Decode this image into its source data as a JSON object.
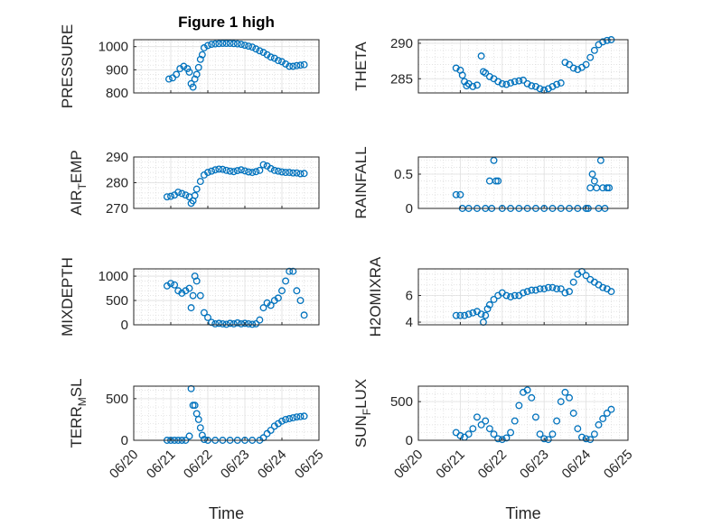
{
  "figure": {
    "title": "Figure 1 high",
    "marker_color": "#0072BD",
    "x_tick_labels": [
      "06/20",
      "06/21",
      "06/22",
      "06/23",
      "06/24",
      "06/25"
    ],
    "xlabel": "Time"
  },
  "chart_data": [
    {
      "type": "scatter",
      "title": "Figure 1 high",
      "ylabel": "PRESSURE",
      "ylim": [
        800,
        1030
      ],
      "yticks": [
        800,
        900,
        1000
      ],
      "xlim": [
        0,
        5
      ],
      "x_tick_labels": [
        "06/20",
        "06/21",
        "06/22",
        "06/23",
        "06/24",
        "06/25"
      ],
      "xlabel": "",
      "grid": true,
      "x": [
        0.95,
        1.05,
        1.15,
        1.25,
        1.35,
        1.45,
        1.5,
        1.55,
        1.6,
        1.65,
        1.7,
        1.75,
        1.8,
        1.85,
        1.9,
        2.0,
        2.1,
        2.2,
        2.3,
        2.4,
        2.5,
        2.6,
        2.7,
        2.8,
        2.9,
        3.0,
        3.1,
        3.2,
        3.3,
        3.4,
        3.5,
        3.6,
        3.7,
        3.8,
        3.9,
        4.0,
        4.1,
        4.2,
        4.3,
        4.4,
        4.5,
        4.6
      ],
      "y": [
        860,
        865,
        880,
        905,
        915,
        905,
        890,
        840,
        825,
        860,
        880,
        910,
        945,
        965,
        995,
        1005,
        1010,
        1012,
        1013,
        1014,
        1014,
        1014,
        1013,
        1012,
        1010,
        1006,
        1002,
        998,
        990,
        982,
        975,
        965,
        955,
        950,
        940,
        935,
        925,
        915,
        915,
        918,
        920,
        922
      ]
    },
    {
      "type": "scatter",
      "ylabel": "THETA",
      "ylim": [
        283,
        290.5
      ],
      "yticks": [
        285,
        290
      ],
      "xlim": [
        0,
        5
      ],
      "x_tick_labels": [
        "06/20",
        "06/21",
        "06/22",
        "06/23",
        "06/24",
        "06/25"
      ],
      "grid": true,
      "x": [
        0.9,
        1.0,
        1.05,
        1.1,
        1.15,
        1.2,
        1.3,
        1.4,
        1.5,
        1.55,
        1.6,
        1.7,
        1.8,
        1.9,
        2.0,
        2.1,
        2.2,
        2.3,
        2.4,
        2.5,
        2.6,
        2.7,
        2.8,
        2.9,
        3.0,
        3.1,
        3.2,
        3.3,
        3.4,
        3.5,
        3.6,
        3.7,
        3.8,
        3.9,
        4.0,
        4.1,
        4.2,
        4.3,
        4.4,
        4.5,
        4.6
      ],
      "y": [
        286.5,
        286.2,
        285.5,
        284.6,
        284.0,
        284.3,
        283.9,
        284.1,
        288.2,
        286.0,
        285.8,
        285.3,
        285.0,
        284.6,
        284.3,
        284.2,
        284.4,
        284.6,
        284.7,
        284.8,
        284.3,
        284.0,
        283.9,
        283.6,
        283.4,
        283.6,
        283.9,
        284.2,
        284.4,
        287.3,
        287.0,
        286.5,
        286.3,
        286.6,
        287.0,
        288.0,
        289.0,
        289.8,
        290.2,
        290.4,
        290.5
      ]
    },
    {
      "type": "scatter",
      "ylabel": "AIR_TEMP",
      "ylim": [
        270,
        290
      ],
      "yticks": [
        270,
        280,
        290
      ],
      "xlim": [
        0,
        5
      ],
      "x_tick_labels": [
        "06/20",
        "06/21",
        "06/22",
        "06/23",
        "06/24",
        "06/25"
      ],
      "grid": true,
      "x": [
        0.9,
        1.0,
        1.1,
        1.2,
        1.3,
        1.4,
        1.5,
        1.55,
        1.6,
        1.65,
        1.7,
        1.8,
        1.9,
        2.0,
        2.1,
        2.2,
        2.3,
        2.4,
        2.5,
        2.6,
        2.7,
        2.8,
        2.9,
        3.0,
        3.1,
        3.2,
        3.3,
        3.4,
        3.5,
        3.6,
        3.7,
        3.8,
        3.9,
        4.0,
        4.1,
        4.2,
        4.3,
        4.4,
        4.5,
        4.6
      ],
      "y": [
        274.5,
        274.7,
        275.2,
        276.3,
        275.8,
        275.2,
        274.5,
        272.0,
        273.0,
        275.0,
        277.5,
        280.5,
        283.0,
        284.0,
        284.5,
        285.0,
        285.3,
        285.2,
        284.8,
        284.5,
        284.3,
        284.7,
        285.0,
        284.6,
        284.2,
        284.0,
        284.3,
        284.8,
        287.0,
        286.5,
        285.5,
        284.8,
        284.5,
        284.2,
        284.0,
        284.0,
        283.8,
        283.8,
        283.5,
        283.6
      ]
    },
    {
      "type": "scatter",
      "ylabel": "RAINFALL",
      "ylim": [
        0,
        0.75
      ],
      "yticks": [
        0,
        0.5
      ],
      "xlim": [
        0,
        5
      ],
      "x_tick_labels": [
        "06/20",
        "06/21",
        "06/22",
        "06/23",
        "06/24",
        "06/25"
      ],
      "grid": true,
      "x": [
        0.9,
        1.0,
        1.05,
        1.2,
        1.4,
        1.6,
        1.7,
        1.75,
        1.8,
        1.85,
        1.9,
        2.0,
        2.2,
        2.4,
        2.6,
        2.8,
        3.0,
        3.2,
        3.4,
        3.6,
        3.8,
        4.0,
        4.05,
        4.1,
        4.15,
        4.2,
        4.25,
        4.3,
        4.35,
        4.4,
        4.45,
        4.5,
        4.55
      ],
      "y": [
        0.2,
        0.2,
        0.0,
        0.0,
        0.0,
        0.0,
        0.4,
        0.0,
        0.7,
        0.4,
        0.4,
        0.0,
        0.0,
        0.0,
        0.0,
        0.0,
        0.0,
        0.0,
        0.0,
        0.0,
        0.0,
        0.0,
        0.0,
        0.3,
        0.5,
        0.4,
        0.3,
        0.0,
        0.7,
        0.3,
        0.0,
        0.3,
        0.3
      ]
    },
    {
      "type": "scatter",
      "ylabel": "MIXDEPTH",
      "ylim": [
        0,
        1150
      ],
      "yticks": [
        0,
        500,
        1000
      ],
      "xlim": [
        0,
        5
      ],
      "x_tick_labels": [
        "06/20",
        "06/21",
        "06/22",
        "06/23",
        "06/24",
        "06/25"
      ],
      "grid": true,
      "x": [
        0.9,
        1.0,
        1.1,
        1.2,
        1.3,
        1.4,
        1.5,
        1.55,
        1.6,
        1.65,
        1.7,
        1.8,
        1.9,
        2.0,
        2.1,
        2.2,
        2.3,
        2.4,
        2.5,
        2.6,
        2.7,
        2.8,
        2.9,
        3.0,
        3.1,
        3.2,
        3.3,
        3.4,
        3.5,
        3.6,
        3.7,
        3.8,
        3.9,
        4.0,
        4.1,
        4.2,
        4.3,
        4.4,
        4.5,
        4.6
      ],
      "y": [
        800,
        850,
        820,
        700,
        650,
        700,
        750,
        350,
        600,
        1000,
        900,
        600,
        250,
        150,
        50,
        20,
        30,
        20,
        10,
        30,
        20,
        40,
        20,
        30,
        20,
        10,
        20,
        100,
        350,
        450,
        400,
        500,
        550,
        700,
        900,
        1100,
        1100,
        700,
        500,
        200
      ]
    },
    {
      "type": "scatter",
      "ylabel": "H2OMIXRA",
      "ylim": [
        3.8,
        8
      ],
      "yticks": [
        4,
        6
      ],
      "xlim": [
        0,
        5
      ],
      "x_tick_labels": [
        "06/20",
        "06/21",
        "06/22",
        "06/23",
        "06/24",
        "06/25"
      ],
      "grid": true,
      "x": [
        0.9,
        1.0,
        1.1,
        1.2,
        1.3,
        1.4,
        1.5,
        1.55,
        1.6,
        1.65,
        1.7,
        1.8,
        1.9,
        2.0,
        2.1,
        2.2,
        2.3,
        2.4,
        2.5,
        2.6,
        2.7,
        2.8,
        2.9,
        3.0,
        3.1,
        3.2,
        3.3,
        3.4,
        3.5,
        3.6,
        3.7,
        3.8,
        3.9,
        4.0,
        4.1,
        4.2,
        4.3,
        4.4,
        4.5,
        4.6
      ],
      "y": [
        4.5,
        4.5,
        4.5,
        4.6,
        4.7,
        4.8,
        4.6,
        4.0,
        4.5,
        5.0,
        5.3,
        5.7,
        6.0,
        6.2,
        6.0,
        5.9,
        6.0,
        6.0,
        6.2,
        6.3,
        6.4,
        6.4,
        6.5,
        6.5,
        6.6,
        6.6,
        6.5,
        6.5,
        6.2,
        6.3,
        7.0,
        7.6,
        7.8,
        7.5,
        7.2,
        7.0,
        6.8,
        6.6,
        6.5,
        6.3
      ]
    },
    {
      "type": "scatter",
      "ylabel": "TERR_MSL",
      "ylim": [
        0,
        650
      ],
      "yticks": [
        0,
        500
      ],
      "xlim": [
        0,
        5
      ],
      "x_tick_labels": [
        "06/20",
        "06/21",
        "06/22",
        "06/23",
        "06/24",
        "06/25"
      ],
      "xlabel": "Time",
      "grid": true,
      "x": [
        0.9,
        1.0,
        1.1,
        1.2,
        1.3,
        1.4,
        1.5,
        1.55,
        1.6,
        1.65,
        1.7,
        1.75,
        1.8,
        1.85,
        1.9,
        2.0,
        2.2,
        2.4,
        2.6,
        2.8,
        3.0,
        3.2,
        3.4,
        3.5,
        3.6,
        3.7,
        3.8,
        3.9,
        4.0,
        4.1,
        4.2,
        4.3,
        4.4,
        4.5,
        4.6
      ],
      "y": [
        0,
        0,
        0,
        0,
        0,
        0,
        50,
        620,
        420,
        420,
        320,
        250,
        150,
        60,
        10,
        0,
        0,
        0,
        0,
        0,
        0,
        0,
        0,
        30,
        80,
        120,
        170,
        200,
        230,
        250,
        260,
        270,
        280,
        285,
        290
      ]
    },
    {
      "type": "scatter",
      "ylabel": "SUN_FLUX",
      "ylim": [
        0,
        700
      ],
      "yticks": [
        0,
        500
      ],
      "xlim": [
        0,
        5
      ],
      "x_tick_labels": [
        "06/20",
        "06/21",
        "06/22",
        "06/23",
        "06/24",
        "06/25"
      ],
      "xlabel": "Time",
      "grid": true,
      "x": [
        0.9,
        1.0,
        1.1,
        1.2,
        1.3,
        1.4,
        1.5,
        1.6,
        1.7,
        1.8,
        1.9,
        2.0,
        2.1,
        2.2,
        2.3,
        2.4,
        2.5,
        2.6,
        2.7,
        2.8,
        2.9,
        3.0,
        3.1,
        3.2,
        3.3,
        3.4,
        3.5,
        3.6,
        3.7,
        3.8,
        3.9,
        4.0,
        4.1,
        4.2,
        4.3,
        4.4,
        4.5,
        4.6
      ],
      "y": [
        100,
        60,
        40,
        80,
        150,
        300,
        200,
        250,
        150,
        80,
        20,
        10,
        30,
        100,
        250,
        450,
        620,
        650,
        550,
        300,
        80,
        20,
        10,
        80,
        250,
        500,
        620,
        550,
        350,
        150,
        40,
        20,
        10,
        80,
        200,
        280,
        350,
        400
      ]
    }
  ]
}
